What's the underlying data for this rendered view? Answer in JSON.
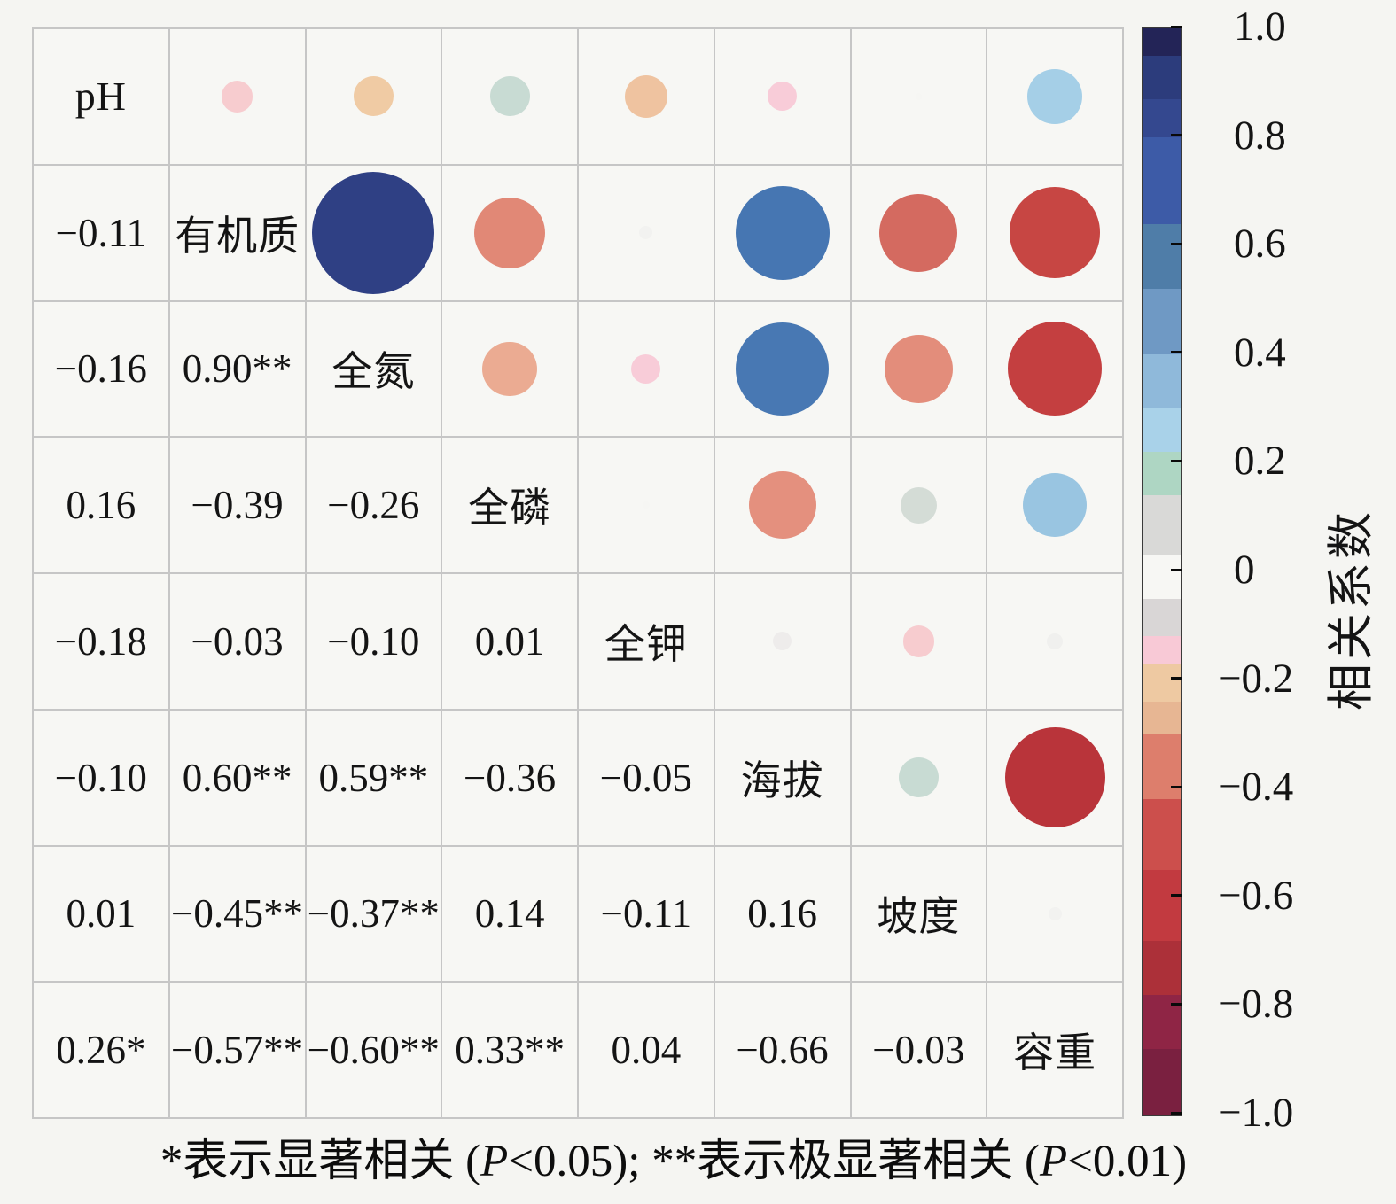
{
  "figure": {
    "background": "#f5f5f2",
    "cell_background": "#f7f7f4",
    "grid_line_color": "#c6c6c6",
    "footnote_parts": [
      {
        "text": "*表示显著相关 (",
        "italic": false
      },
      {
        "text": "P",
        "italic": true
      },
      {
        "text": "<0.05); **表示极显著相关 (",
        "italic": false
      },
      {
        "text": "P",
        "italic": true
      },
      {
        "text": "<0.01)",
        "italic": false
      }
    ],
    "colorbar": {
      "label": "相关系数",
      "tick_labels": [
        "1.0",
        "0.8",
        "0.6",
        "0.4",
        "0.2",
        "0",
        "−0.2",
        "−0.4",
        "−0.6",
        "−0.8",
        "−1.0"
      ],
      "tick_values": [
        1.0,
        0.8,
        0.6,
        0.4,
        0.2,
        0,
        -0.2,
        -0.4,
        -0.6,
        -0.8,
        -1.0
      ],
      "bands": [
        [
          1.0,
          0.95,
          "#232457"
        ],
        [
          0.95,
          0.87,
          "#2c3c7c"
        ],
        [
          0.87,
          0.8,
          "#34488f"
        ],
        [
          0.8,
          0.64,
          "#3d5ba7"
        ],
        [
          0.64,
          0.52,
          "#4f7da8"
        ],
        [
          0.52,
          0.4,
          "#6f99c4"
        ],
        [
          0.4,
          0.3,
          "#8fb9da"
        ],
        [
          0.3,
          0.22,
          "#a9d2e9"
        ],
        [
          0.22,
          0.14,
          "#aed6c3"
        ],
        [
          0.14,
          0.03,
          "#d9d9d7"
        ],
        [
          0.03,
          -0.05,
          "#f7f7f4"
        ],
        [
          -0.05,
          -0.12,
          "#d9d6d6"
        ],
        [
          -0.12,
          -0.17,
          "#f8c9d6"
        ],
        [
          -0.17,
          -0.24,
          "#eec9a2"
        ],
        [
          -0.24,
          -0.3,
          "#e7b693"
        ],
        [
          -0.3,
          -0.42,
          "#dd7e6c"
        ],
        [
          -0.42,
          -0.55,
          "#cc4f4c"
        ],
        [
          -0.55,
          -0.68,
          "#c23a40"
        ],
        [
          -0.68,
          -0.78,
          "#ac3039"
        ],
        [
          -0.78,
          -0.88,
          "#8f2545"
        ],
        [
          -0.88,
          -1.0,
          "#7a2040"
        ]
      ]
    }
  },
  "chart_data": {
    "type": "heatmap",
    "subtype": "correlation-matrix-corrplot",
    "variables": [
      "pH",
      "有机质",
      "全氮",
      "全磷",
      "全钾",
      "海拔",
      "坡度",
      "容重"
    ],
    "lower_triangle_values": [
      [],
      [
        -0.11
      ],
      [
        -0.16,
        0.9
      ],
      [
        0.16,
        -0.39,
        -0.26
      ],
      [
        -0.18,
        -0.03,
        -0.1,
        0.01
      ],
      [
        -0.1,
        0.6,
        0.59,
        -0.36,
        -0.05
      ],
      [
        0.01,
        -0.45,
        -0.37,
        0.14,
        -0.11,
        0.16
      ],
      [
        0.26,
        -0.57,
        -0.6,
        0.33,
        0.04,
        -0.66,
        -0.03
      ]
    ],
    "lower_triangle_labels": [
      [],
      [
        "−0.11"
      ],
      [
        "−0.16",
        "0.90**"
      ],
      [
        "0.16",
        "−0.39",
        "−0.26"
      ],
      [
        "−0.18",
        "−0.03",
        "−0.10",
        "0.01"
      ],
      [
        "−0.10",
        "0.60**",
        "0.59**",
        "−0.36",
        "−0.05"
      ],
      [
        "0.01",
        "−0.45**",
        "−0.37**",
        "0.14",
        "−0.11",
        "0.16"
      ],
      [
        "0.26*",
        "−0.57**",
        "−0.60**",
        "0.33**",
        "0.04",
        "−0.66",
        "−0.03"
      ]
    ],
    "upper_triangle_rendering": "circle area and color encode correlation value",
    "value_range": [
      -1,
      1
    ],
    "colorbar_label": "相关系数",
    "colormap_stops": [
      [
        1.0,
        "#232457"
      ],
      [
        0.9,
        "#2f4084"
      ],
      [
        0.78,
        "#3a57a5"
      ],
      [
        0.6,
        "#4676b2"
      ],
      [
        0.5,
        "#5c88bc"
      ],
      [
        0.4,
        "#7ba6cf"
      ],
      [
        0.36,
        "#93c0de"
      ],
      [
        0.24,
        "#a9d2e9"
      ],
      [
        0.2,
        "#b0d9cd"
      ],
      [
        0.14,
        "#d4dcd6"
      ],
      [
        0.08,
        "#e2e2e0"
      ],
      [
        0.04,
        "#f0f0ee"
      ],
      [
        0.0,
        "#f8f8f5"
      ],
      [
        -0.04,
        "#f0f0ee"
      ],
      [
        -0.08,
        "#e8e0e2"
      ],
      [
        -0.1,
        "#f8ccd8"
      ],
      [
        -0.16,
        "#f0cba4"
      ],
      [
        -0.22,
        "#edb497"
      ],
      [
        -0.3,
        "#e9a28c"
      ],
      [
        -0.36,
        "#e4907e"
      ],
      [
        -0.4,
        "#e08573"
      ],
      [
        -0.46,
        "#d2655c"
      ],
      [
        -0.52,
        "#cc5049"
      ],
      [
        -0.58,
        "#c64442"
      ],
      [
        -0.62,
        "#c23a3e"
      ],
      [
        -0.68,
        "#b43138"
      ],
      [
        -0.75,
        "#aa2d3b"
      ],
      [
        -0.85,
        "#932647"
      ],
      [
        -1.0,
        "#6f1e3d"
      ]
    ]
  }
}
